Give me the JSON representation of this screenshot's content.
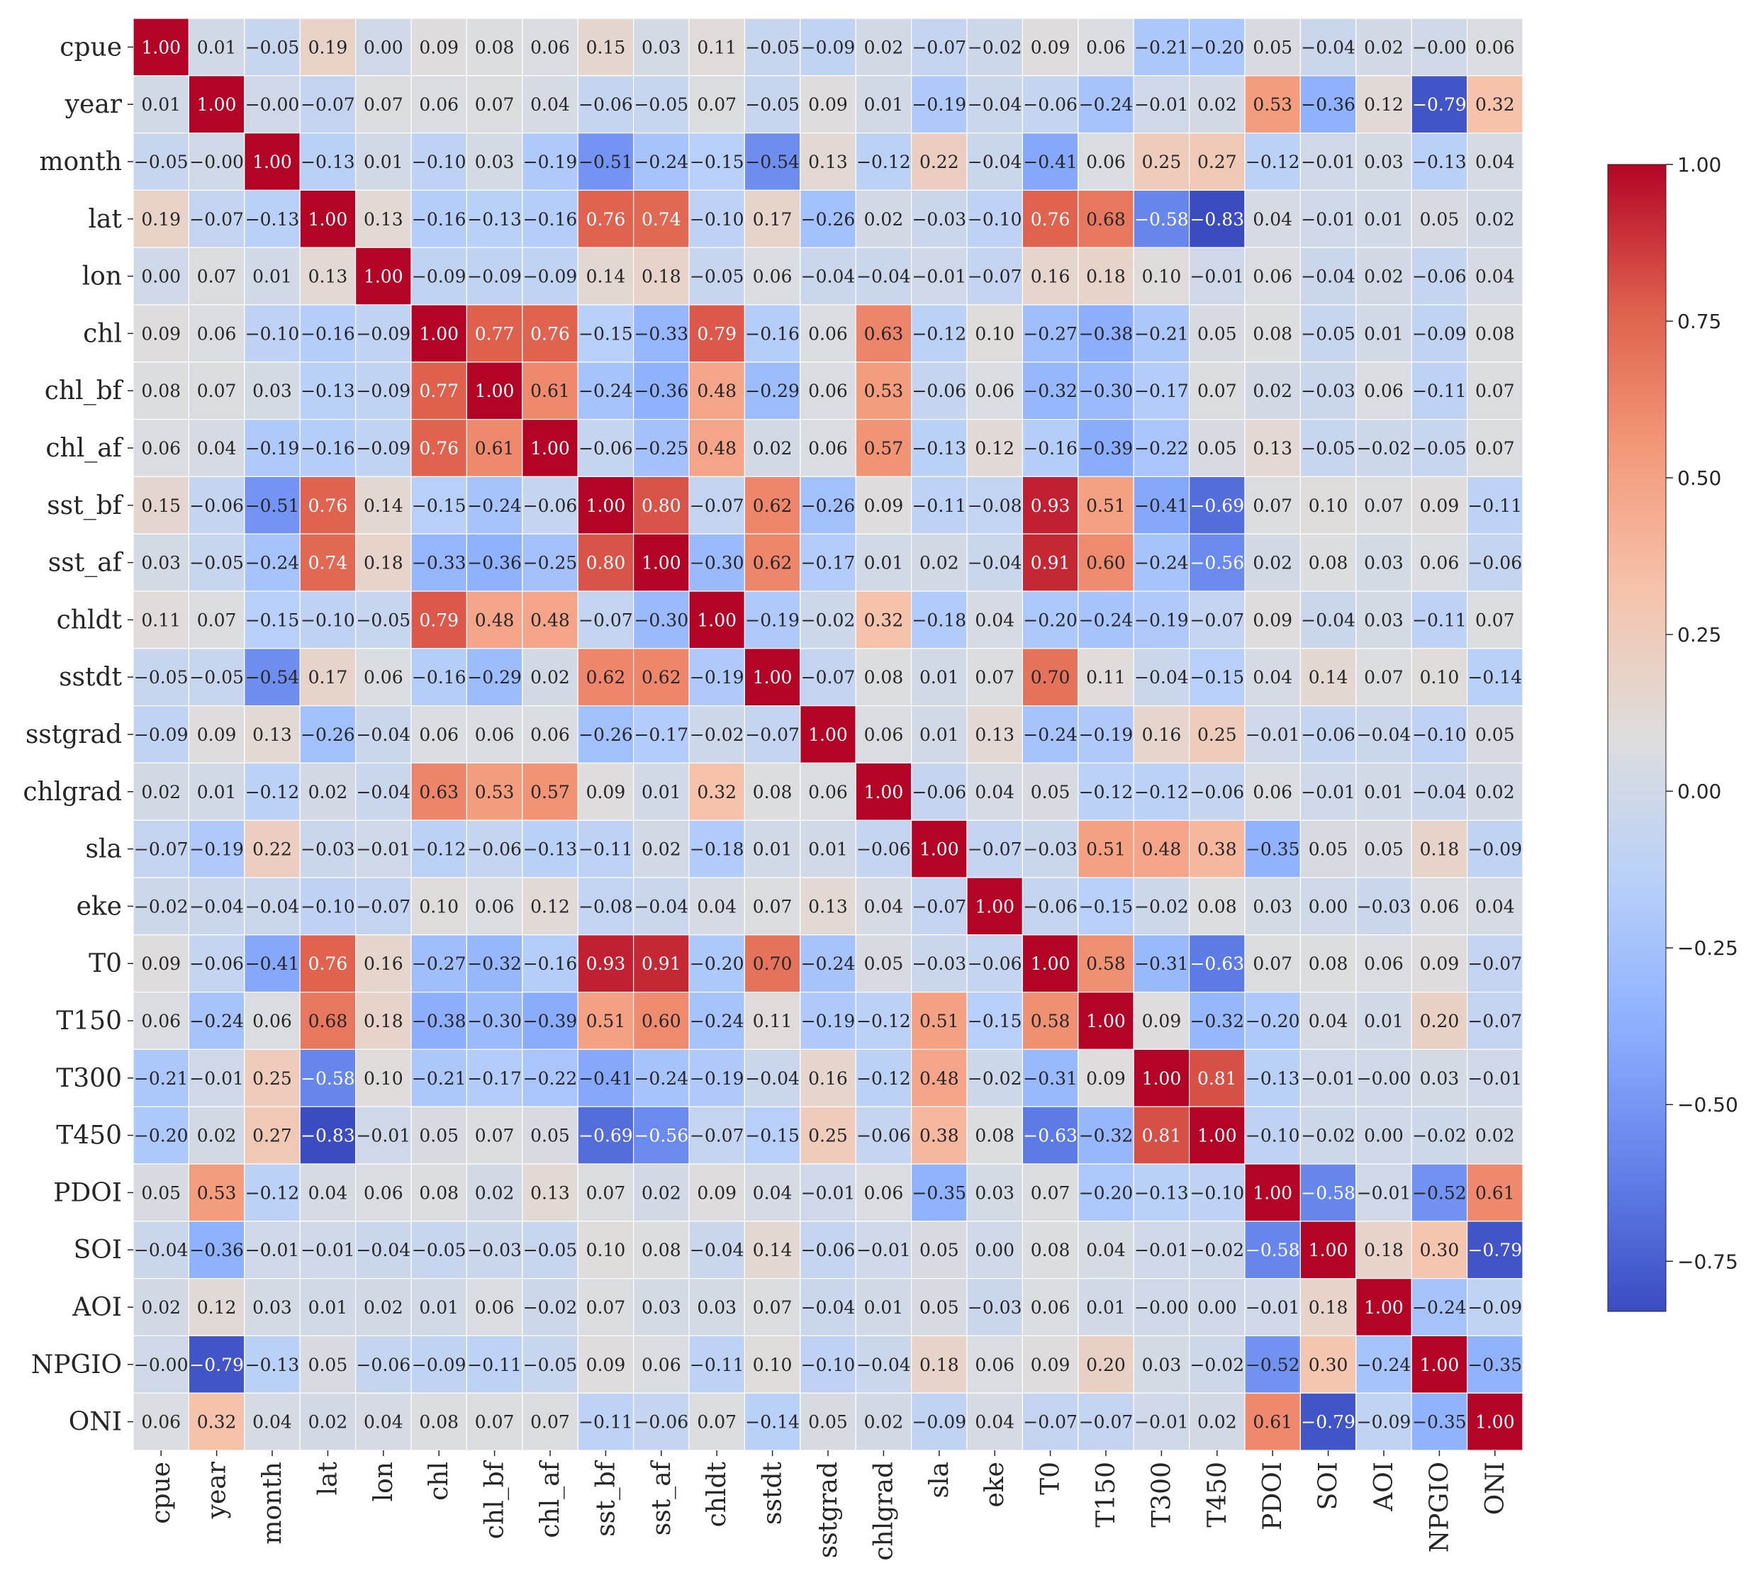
{
  "chart_data": {
    "type": "heatmap",
    "title": "",
    "xlabel": "",
    "ylabel": "",
    "labels": [
      "cpue",
      "year",
      "month",
      "lat",
      "lon",
      "chl",
      "chl_bf",
      "chl_af",
      "sst_bf",
      "sst_af",
      "chldt",
      "sstdt",
      "sstgrad",
      "chlgrad",
      "sla",
      "eke",
      "T0",
      "T150",
      "T300",
      "T450",
      "PDOI",
      "SOI",
      "AOI",
      "NPGIO",
      "ONI"
    ],
    "matrix": [
      [
        "1.00",
        "0.01",
        "−0.05",
        "0.19",
        "0.00",
        "0.09",
        "0.08",
        "0.06",
        "0.15",
        "0.03",
        "0.11",
        "−0.05",
        "−0.09",
        "0.02",
        "−0.07",
        "−0.02",
        "0.09",
        "0.06",
        "−0.21",
        "−0.20",
        "0.05",
        "−0.04",
        "0.02",
        "−0.00",
        "0.06"
      ],
      [
        "0.01",
        "1.00",
        "−0.00",
        "−0.07",
        "0.07",
        "0.06",
        "0.07",
        "0.04",
        "−0.06",
        "−0.05",
        "0.07",
        "−0.05",
        "0.09",
        "0.01",
        "−0.19",
        "−0.04",
        "−0.06",
        "−0.24",
        "−0.01",
        "0.02",
        "0.53",
        "−0.36",
        "0.12",
        "−0.79",
        "0.32"
      ],
      [
        "−0.05",
        "−0.00",
        "1.00",
        "−0.13",
        "0.01",
        "−0.10",
        "0.03",
        "−0.19",
        "−0.51",
        "−0.24",
        "−0.15",
        "−0.54",
        "0.13",
        "−0.12",
        "0.22",
        "−0.04",
        "−0.41",
        "0.06",
        "0.25",
        "0.27",
        "−0.12",
        "−0.01",
        "0.03",
        "−0.13",
        "0.04"
      ],
      [
        "0.19",
        "−0.07",
        "−0.13",
        "1.00",
        "0.13",
        "−0.16",
        "−0.13",
        "−0.16",
        "0.76",
        "0.74",
        "−0.10",
        "0.17",
        "−0.26",
        "0.02",
        "−0.03",
        "−0.10",
        "0.76",
        "0.68",
        "−0.58",
        "−0.83",
        "0.04",
        "−0.01",
        "0.01",
        "0.05",
        "0.02"
      ],
      [
        "0.00",
        "0.07",
        "0.01",
        "0.13",
        "1.00",
        "−0.09",
        "−0.09",
        "−0.09",
        "0.14",
        "0.18",
        "−0.05",
        "0.06",
        "−0.04",
        "−0.04",
        "−0.01",
        "−0.07",
        "0.16",
        "0.18",
        "0.10",
        "−0.01",
        "0.06",
        "−0.04",
        "0.02",
        "−0.06",
        "0.04"
      ],
      [
        "0.09",
        "0.06",
        "−0.10",
        "−0.16",
        "−0.09",
        "1.00",
        "0.77",
        "0.76",
        "−0.15",
        "−0.33",
        "0.79",
        "−0.16",
        "0.06",
        "0.63",
        "−0.12",
        "0.10",
        "−0.27",
        "−0.38",
        "−0.21",
        "0.05",
        "0.08",
        "−0.05",
        "0.01",
        "−0.09",
        "0.08"
      ],
      [
        "0.08",
        "0.07",
        "0.03",
        "−0.13",
        "−0.09",
        "0.77",
        "1.00",
        "0.61",
        "−0.24",
        "−0.36",
        "0.48",
        "−0.29",
        "0.06",
        "0.53",
        "−0.06",
        "0.06",
        "−0.32",
        "−0.30",
        "−0.17",
        "0.07",
        "0.02",
        "−0.03",
        "0.06",
        "−0.11",
        "0.07"
      ],
      [
        "0.06",
        "0.04",
        "−0.19",
        "−0.16",
        "−0.09",
        "0.76",
        "0.61",
        "1.00",
        "−0.06",
        "−0.25",
        "0.48",
        "0.02",
        "0.06",
        "0.57",
        "−0.13",
        "0.12",
        "−0.16",
        "−0.39",
        "−0.22",
        "0.05",
        "0.13",
        "−0.05",
        "−0.02",
        "−0.05",
        "0.07"
      ],
      [
        "0.15",
        "−0.06",
        "−0.51",
        "0.76",
        "0.14",
        "−0.15",
        "−0.24",
        "−0.06",
        "1.00",
        "0.80",
        "−0.07",
        "0.62",
        "−0.26",
        "0.09",
        "−0.11",
        "−0.08",
        "0.93",
        "0.51",
        "−0.41",
        "−0.69",
        "0.07",
        "0.10",
        "0.07",
        "0.09",
        "−0.11"
      ],
      [
        "0.03",
        "−0.05",
        "−0.24",
        "0.74",
        "0.18",
        "−0.33",
        "−0.36",
        "−0.25",
        "0.80",
        "1.00",
        "−0.30",
        "0.62",
        "−0.17",
        "0.01",
        "0.02",
        "−0.04",
        "0.91",
        "0.60",
        "−0.24",
        "−0.56",
        "0.02",
        "0.08",
        "0.03",
        "0.06",
        "−0.06"
      ],
      [
        "0.11",
        "0.07",
        "−0.15",
        "−0.10",
        "−0.05",
        "0.79",
        "0.48",
        "0.48",
        "−0.07",
        "−0.30",
        "1.00",
        "−0.19",
        "−0.02",
        "0.32",
        "−0.18",
        "0.04",
        "−0.20",
        "−0.24",
        "−0.19",
        "−0.07",
        "0.09",
        "−0.04",
        "0.03",
        "−0.11",
        "0.07"
      ],
      [
        "−0.05",
        "−0.05",
        "−0.54",
        "0.17",
        "0.06",
        "−0.16",
        "−0.29",
        "0.02",
        "0.62",
        "0.62",
        "−0.19",
        "1.00",
        "−0.07",
        "0.08",
        "0.01",
        "0.07",
        "0.70",
        "0.11",
        "−0.04",
        "−0.15",
        "0.04",
        "0.14",
        "0.07",
        "0.10",
        "−0.14"
      ],
      [
        "−0.09",
        "0.09",
        "0.13",
        "−0.26",
        "−0.04",
        "0.06",
        "0.06",
        "0.06",
        "−0.26",
        "−0.17",
        "−0.02",
        "−0.07",
        "1.00",
        "0.06",
        "0.01",
        "0.13",
        "−0.24",
        "−0.19",
        "0.16",
        "0.25",
        "−0.01",
        "−0.06",
        "−0.04",
        "−0.10",
        "0.05"
      ],
      [
        "0.02",
        "0.01",
        "−0.12",
        "0.02",
        "−0.04",
        "0.63",
        "0.53",
        "0.57",
        "0.09",
        "0.01",
        "0.32",
        "0.08",
        "0.06",
        "1.00",
        "−0.06",
        "0.04",
        "0.05",
        "−0.12",
        "−0.12",
        "−0.06",
        "0.06",
        "−0.01",
        "0.01",
        "−0.04",
        "0.02"
      ],
      [
        "−0.07",
        "−0.19",
        "0.22",
        "−0.03",
        "−0.01",
        "−0.12",
        "−0.06",
        "−0.13",
        "−0.11",
        "0.02",
        "−0.18",
        "0.01",
        "0.01",
        "−0.06",
        "1.00",
        "−0.07",
        "−0.03",
        "0.51",
        "0.48",
        "0.38",
        "−0.35",
        "0.05",
        "0.05",
        "0.18",
        "−0.09"
      ],
      [
        "−0.02",
        "−0.04",
        "−0.04",
        "−0.10",
        "−0.07",
        "0.10",
        "0.06",
        "0.12",
        "−0.08",
        "−0.04",
        "0.04",
        "0.07",
        "0.13",
        "0.04",
        "−0.07",
        "1.00",
        "−0.06",
        "−0.15",
        "−0.02",
        "0.08",
        "0.03",
        "0.00",
        "−0.03",
        "0.06",
        "0.04"
      ],
      [
        "0.09",
        "−0.06",
        "−0.41",
        "0.76",
        "0.16",
        "−0.27",
        "−0.32",
        "−0.16",
        "0.93",
        "0.91",
        "−0.20",
        "0.70",
        "−0.24",
        "0.05",
        "−0.03",
        "−0.06",
        "1.00",
        "0.58",
        "−0.31",
        "−0.63",
        "0.07",
        "0.08",
        "0.06",
        "0.09",
        "−0.07"
      ],
      [
        "0.06",
        "−0.24",
        "0.06",
        "0.68",
        "0.18",
        "−0.38",
        "−0.30",
        "−0.39",
        "0.51",
        "0.60",
        "−0.24",
        "0.11",
        "−0.19",
        "−0.12",
        "0.51",
        "−0.15",
        "0.58",
        "1.00",
        "0.09",
        "−0.32",
        "−0.20",
        "0.04",
        "0.01",
        "0.20",
        "−0.07"
      ],
      [
        "−0.21",
        "−0.01",
        "0.25",
        "−0.58",
        "0.10",
        "−0.21",
        "−0.17",
        "−0.22",
        "−0.41",
        "−0.24",
        "−0.19",
        "−0.04",
        "0.16",
        "−0.12",
        "0.48",
        "−0.02",
        "−0.31",
        "0.09",
        "1.00",
        "0.81",
        "−0.13",
        "−0.01",
        "−0.00",
        "0.03",
        "−0.01"
      ],
      [
        "−0.20",
        "0.02",
        "0.27",
        "−0.83",
        "−0.01",
        "0.05",
        "0.07",
        "0.05",
        "−0.69",
        "−0.56",
        "−0.07",
        "−0.15",
        "0.25",
        "−0.06",
        "0.38",
        "0.08",
        "−0.63",
        "−0.32",
        "0.81",
        "1.00",
        "−0.10",
        "−0.02",
        "0.00",
        "−0.02",
        "0.02"
      ],
      [
        "0.05",
        "0.53",
        "−0.12",
        "0.04",
        "0.06",
        "0.08",
        "0.02",
        "0.13",
        "0.07",
        "0.02",
        "0.09",
        "0.04",
        "−0.01",
        "0.06",
        "−0.35",
        "0.03",
        "0.07",
        "−0.20",
        "−0.13",
        "−0.10",
        "1.00",
        "−0.58",
        "−0.01",
        "−0.52",
        "0.61"
      ],
      [
        "−0.04",
        "−0.36",
        "−0.01",
        "−0.01",
        "−0.04",
        "−0.05",
        "−0.03",
        "−0.05",
        "0.10",
        "0.08",
        "−0.04",
        "0.14",
        "−0.06",
        "−0.01",
        "0.05",
        "0.00",
        "0.08",
        "0.04",
        "−0.01",
        "−0.02",
        "−0.58",
        "1.00",
        "0.18",
        "0.30",
        "−0.79"
      ],
      [
        "0.02",
        "0.12",
        "0.03",
        "0.01",
        "0.02",
        "0.01",
        "0.06",
        "−0.02",
        "0.07",
        "0.03",
        "0.03",
        "0.07",
        "−0.04",
        "0.01",
        "0.05",
        "−0.03",
        "0.06",
        "0.01",
        "−0.00",
        "0.00",
        "−0.01",
        "0.18",
        "1.00",
        "−0.24",
        "−0.09"
      ],
      [
        "−0.00",
        "−0.79",
        "−0.13",
        "0.05",
        "−0.06",
        "−0.09",
        "−0.11",
        "−0.05",
        "0.09",
        "0.06",
        "−0.11",
        "0.10",
        "−0.10",
        "−0.04",
        "0.18",
        "0.06",
        "0.09",
        "0.20",
        "0.03",
        "−0.02",
        "−0.52",
        "0.30",
        "−0.24",
        "1.00",
        "−0.35"
      ],
      [
        "0.06",
        "0.32",
        "0.04",
        "0.02",
        "0.04",
        "0.08",
        "0.07",
        "0.07",
        "−0.11",
        "−0.06",
        "0.07",
        "−0.14",
        "0.05",
        "0.02",
        "−0.09",
        "0.04",
        "−0.07",
        "−0.07",
        "−0.01",
        "0.02",
        "0.61",
        "−0.79",
        "−0.09",
        "−0.35",
        "1.00"
      ]
    ],
    "value_range": [
      -0.83,
      1.0
    ],
    "colormap": "coolwarm",
    "colorbar_ticks": [
      "1.00",
      "0.75",
      "0.50",
      "0.25",
      "0.00",
      "−0.25",
      "−0.50",
      "−0.75"
    ],
    "grid": true,
    "legend": "colorbar-right"
  },
  "colors": {
    "low": "#3b4cc0",
    "mid": "#dddddd",
    "high": "#b40426",
    "grid_lines": "#ffffff",
    "text_dark": "#262626",
    "text_light": "#ffffff"
  }
}
